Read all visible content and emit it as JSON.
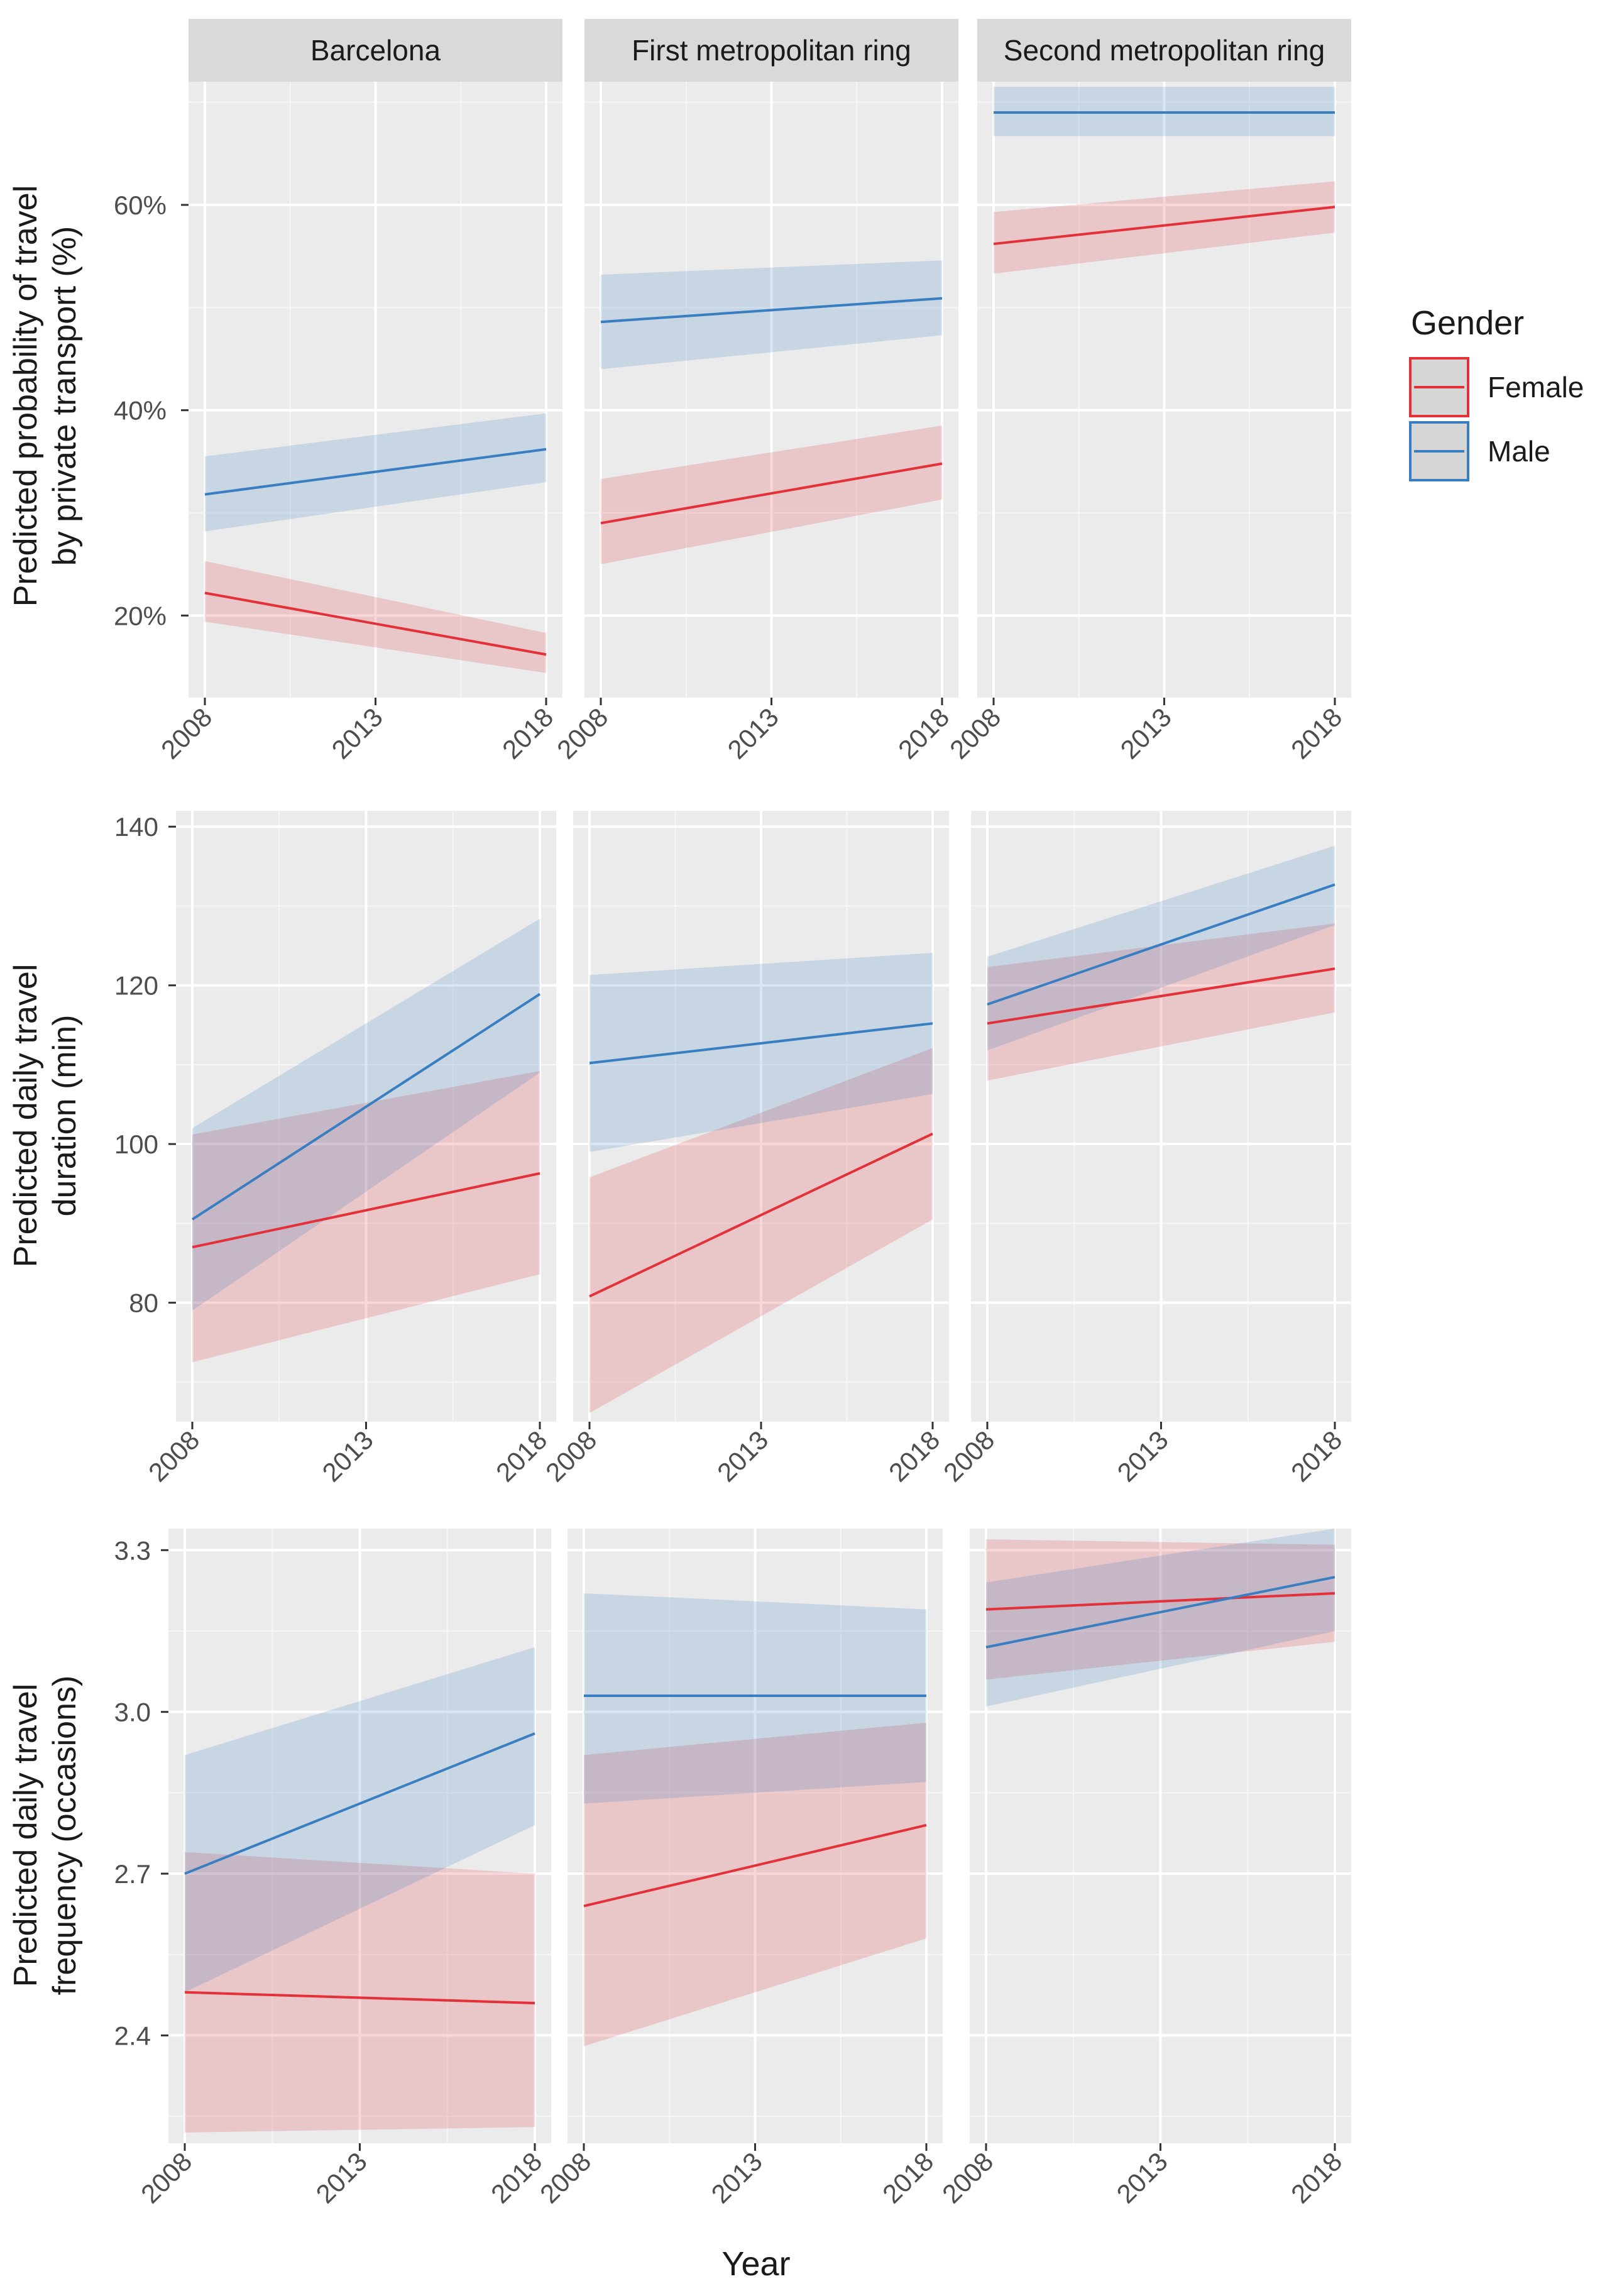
{
  "chart_data": {
    "type": "line",
    "x_label": "Year",
    "x_ticks": [
      "2008",
      "2013",
      "2018"
    ],
    "facets": [
      "Barcelona",
      "First metropolitan ring",
      "Second metropolitan ring"
    ],
    "legend": {
      "title": "Gender",
      "position": "right",
      "entries": [
        {
          "name": "Female",
          "color": "#e3313a"
        },
        {
          "name": "Male",
          "color": "#3a7ec2"
        }
      ]
    },
    "rows": [
      {
        "ylabel_line1": "Predicted probability of travel",
        "ylabel_line2": "by private transport (%)",
        "ylim": [
          12,
          72
        ],
        "y_ticks": [
          {
            "value": 20,
            "label": "20%"
          },
          {
            "value": 40,
            "label": "40%"
          },
          {
            "value": 60,
            "label": "60%"
          }
        ],
        "panels": [
          {
            "facet": "Barcelona",
            "series": [
              {
                "name": "Female",
                "x": [
                  2008,
                  2018
                ],
                "y": [
                  22.2,
                  16.2
                ],
                "lower": [
                  19.4,
                  14.4
                ],
                "upper": [
                  25.3,
                  18.3
                ]
              },
              {
                "name": "Male",
                "x": [
                  2008,
                  2018
                ],
                "y": [
                  31.8,
                  36.2
                ],
                "lower": [
                  28.2,
                  33.0
                ],
                "upper": [
                  35.5,
                  39.7
                ]
              }
            ]
          },
          {
            "facet": "First metropolitan ring",
            "series": [
              {
                "name": "Female",
                "x": [
                  2008,
                  2018
                ],
                "y": [
                  29.0,
                  34.8
                ],
                "lower": [
                  25.0,
                  31.3
                ],
                "upper": [
                  33.3,
                  38.5
                ]
              },
              {
                "name": "Male",
                "x": [
                  2008,
                  2018
                ],
                "y": [
                  48.6,
                  50.9
                ],
                "lower": [
                  44.0,
                  47.3
                ],
                "upper": [
                  53.2,
                  54.6
                ]
              }
            ]
          },
          {
            "facet": "Second metropolitan ring",
            "series": [
              {
                "name": "Female",
                "x": [
                  2008,
                  2018
                ],
                "y": [
                  56.2,
                  59.8
                ],
                "lower": [
                  53.3,
                  57.3
                ],
                "upper": [
                  59.3,
                  62.3
                ]
              },
              {
                "name": "Male",
                "x": [
                  2008,
                  2018
                ],
                "y": [
                  69.0,
                  69.0
                ],
                "lower": [
                  66.7,
                  66.7
                ],
                "upper": [
                  71.5,
                  71.5
                ]
              }
            ]
          }
        ]
      },
      {
        "ylabel_line1": "Predicted daily travel",
        "ylabel_line2": "duration (min)",
        "ylim": [
          65,
          142
        ],
        "y_ticks": [
          {
            "value": 80,
            "label": "80"
          },
          {
            "value": 100,
            "label": "100"
          },
          {
            "value": 120,
            "label": "120"
          },
          {
            "value": 140,
            "label": "140"
          }
        ],
        "panels": [
          {
            "facet": "Barcelona",
            "series": [
              {
                "name": "Female",
                "x": [
                  2008,
                  2018
                ],
                "y": [
                  87,
                  96.3
                ],
                "lower": [
                  72.5,
                  83.6
                ],
                "upper": [
                  101.2,
                  109.2
                ]
              },
              {
                "name": "Male",
                "x": [
                  2008,
                  2018
                ],
                "y": [
                  90.5,
                  118.9
                ],
                "lower": [
                  79,
                  109
                ],
                "upper": [
                  102,
                  128.4
                ]
              }
            ]
          },
          {
            "facet": "First metropolitan ring",
            "series": [
              {
                "name": "Female",
                "x": [
                  2008,
                  2018
                ],
                "y": [
                  80.8,
                  101.3
                ],
                "lower": [
                  66.1,
                  90.5
                ],
                "upper": [
                  95.8,
                  112.1
                ]
              },
              {
                "name": "Male",
                "x": [
                  2008,
                  2018
                ],
                "y": [
                  110.2,
                  115.2
                ],
                "lower": [
                  99,
                  106.3
                ],
                "upper": [
                  121.3,
                  124.1
                ]
              }
            ]
          },
          {
            "facet": "Second metropolitan ring",
            "series": [
              {
                "name": "Female",
                "x": [
                  2008,
                  2018
                ],
                "y": [
                  115.2,
                  122.1
                ],
                "lower": [
                  108,
                  116.6
                ],
                "upper": [
                  122.3,
                  127.8
                ]
              },
              {
                "name": "Male",
                "x": [
                  2008,
                  2018
                ],
                "y": [
                  117.6,
                  132.7
                ],
                "lower": [
                  111.8,
                  127.6
                ],
                "upper": [
                  123.6,
                  137.6
                ]
              }
            ]
          }
        ]
      },
      {
        "ylabel_line1": "Predicted daily travel",
        "ylabel_line2": "frequency (occasions)",
        "ylim": [
          2.2,
          3.34
        ],
        "y_ticks": [
          {
            "value": 2.4,
            "label": "2.4"
          },
          {
            "value": 2.7,
            "label": "2.7"
          },
          {
            "value": 3.0,
            "label": "3.0"
          },
          {
            "value": 3.3,
            "label": "3.3"
          }
        ],
        "panels": [
          {
            "facet": "Barcelona",
            "series": [
              {
                "name": "Female",
                "x": [
                  2008,
                  2018
                ],
                "y": [
                  2.48,
                  2.46
                ],
                "lower": [
                  2.22,
                  2.23
                ],
                "upper": [
                  2.74,
                  2.7
                ]
              },
              {
                "name": "Male",
                "x": [
                  2008,
                  2018
                ],
                "y": [
                  2.7,
                  2.96
                ],
                "lower": [
                  2.48,
                  2.79
                ],
                "upper": [
                  2.92,
                  3.12
                ]
              }
            ]
          },
          {
            "facet": "First metropolitan ring",
            "series": [
              {
                "name": "Female",
                "x": [
                  2008,
                  2018
                ],
                "y": [
                  2.64,
                  2.79
                ],
                "lower": [
                  2.38,
                  2.58
                ],
                "upper": [
                  2.92,
                  2.98
                ]
              },
              {
                "name": "Male",
                "x": [
                  2008,
                  2018
                ],
                "y": [
                  3.03,
                  3.03
                ],
                "lower": [
                  2.83,
                  2.87
                ],
                "upper": [
                  3.22,
                  3.19
                ]
              }
            ]
          },
          {
            "facet": "Second metropolitan ring",
            "series": [
              {
                "name": "Female",
                "x": [
                  2008,
                  2018
                ],
                "y": [
                  3.19,
                  3.22
                ],
                "lower": [
                  3.06,
                  3.13
                ],
                "upper": [
                  3.32,
                  3.31
                ]
              },
              {
                "name": "Male",
                "x": [
                  2008,
                  2018
                ],
                "y": [
                  3.12,
                  3.25
                ],
                "lower": [
                  3.01,
                  3.15
                ],
                "upper": [
                  3.24,
                  3.34
                ]
              }
            ]
          }
        ]
      }
    ]
  }
}
